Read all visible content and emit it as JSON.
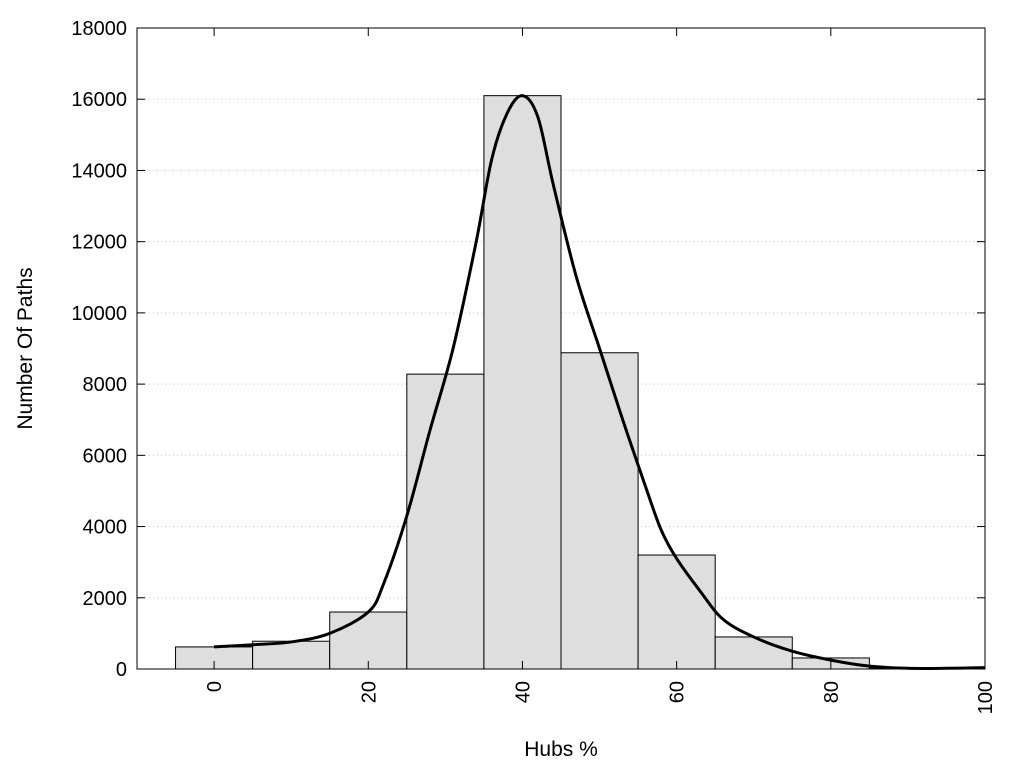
{
  "chart_data": {
    "type": "bar",
    "title": "",
    "xlabel": "Hubs %",
    "ylabel": "Number Of Paths",
    "xlim": [
      -10,
      100
    ],
    "ylim": [
      0,
      18000
    ],
    "xticks": [
      0,
      20,
      40,
      60,
      80,
      100
    ],
    "yticks": [
      0,
      2000,
      4000,
      6000,
      8000,
      10000,
      12000,
      14000,
      16000,
      18000
    ],
    "grid": "horizontal dotted",
    "bar_width": 10,
    "bars": [
      {
        "x": 0,
        "value": 620
      },
      {
        "x": 10,
        "value": 780
      },
      {
        "x": 20,
        "value": 1600
      },
      {
        "x": 30,
        "value": 8280
      },
      {
        "x": 40,
        "value": 16100
      },
      {
        "x": 50,
        "value": 8880
      },
      {
        "x": 60,
        "value": 3200
      },
      {
        "x": 70,
        "value": 900
      },
      {
        "x": 80,
        "value": 310
      },
      {
        "x": 90,
        "value": 30
      },
      {
        "x": 100,
        "value": 10
      }
    ],
    "curve": {
      "x": [
        0,
        5,
        10,
        15,
        20,
        22,
        25,
        28,
        31,
        34,
        36,
        38,
        40,
        42,
        44,
        47,
        50,
        53,
        56,
        58,
        60,
        63,
        66,
        70,
        75,
        80,
        85,
        90,
        95,
        100
      ],
      "y": [
        620,
        680,
        760,
        1000,
        1600,
        2400,
        4300,
        6700,
        9000,
        12000,
        14300,
        15600,
        16100,
        15500,
        13600,
        11000,
        9000,
        7000,
        5100,
        3900,
        3100,
        2200,
        1400,
        900,
        500,
        250,
        80,
        20,
        20,
        40
      ]
    },
    "bar_fill": "#dedede",
    "bar_stroke": "#000000",
    "curve_color": "#000000"
  }
}
